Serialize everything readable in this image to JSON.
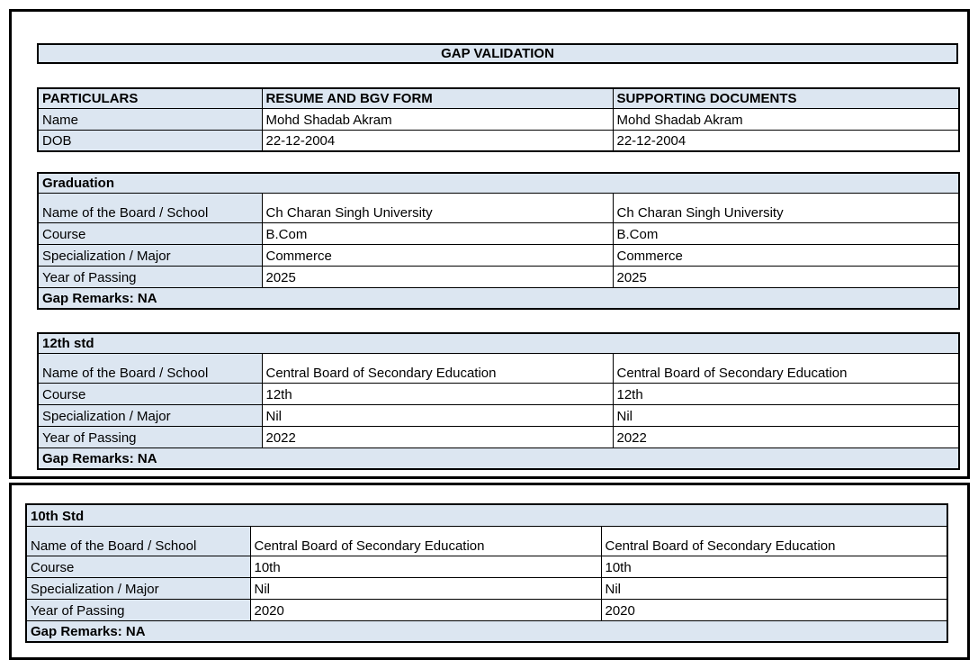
{
  "title": "GAP VALIDATION",
  "colors": {
    "header_fill": "#dce6f1",
    "border": "#000000",
    "text": "#000000",
    "background": "#ffffff"
  },
  "particulars_table": {
    "headers": [
      "PARTICULARS",
      "RESUME AND BGV FORM",
      "SUPPORTING DOCUMENTS"
    ],
    "rows": [
      {
        "label": "Name",
        "resume": "Mohd Shadab Akram",
        "supporting": "Mohd Shadab Akram"
      },
      {
        "label": "DOB",
        "resume": "22-12-2004",
        "supporting": "22-12-2004"
      }
    ]
  },
  "sections": [
    {
      "title": "Graduation",
      "rows": [
        {
          "label": "Name of the Board / School",
          "resume": "Ch Charan Singh University",
          "supporting": "Ch Charan Singh University"
        },
        {
          "label": "Course",
          "resume": "B.Com",
          "supporting": "B.Com"
        },
        {
          "label": "Specialization / Major",
          "resume": "Commerce",
          "supporting": "Commerce"
        },
        {
          "label": "Year of Passing",
          "resume": "2025",
          "supporting": "2025"
        }
      ],
      "gap_remarks": "Gap Remarks: NA"
    },
    {
      "title": "12th std",
      "rows": [
        {
          "label": "Name of the Board / School",
          "resume": "Central Board of Secondary Education",
          "supporting": "Central Board of Secondary Education"
        },
        {
          "label": "Course",
          "resume": "12th",
          "supporting": "12th"
        },
        {
          "label": "Specialization / Major",
          "resume": "Nil",
          "supporting": "Nil"
        },
        {
          "label": "Year of Passing",
          "resume": "2022",
          "supporting": "2022"
        }
      ],
      "gap_remarks": "Gap Remarks: NA"
    },
    {
      "title": "10th Std",
      "rows": [
        {
          "label": "Name of the Board / School",
          "resume": "Central Board of Secondary Education",
          "supporting": "Central Board of Secondary Education"
        },
        {
          "label": "Course",
          "resume": "10th",
          "supporting": "10th"
        },
        {
          "label": "Specialization / Major",
          "resume": "Nil",
          "supporting": "Nil"
        },
        {
          "label": "Year of Passing",
          "resume": "2020",
          "supporting": "2020"
        }
      ],
      "gap_remarks": "Gap Remarks: NA"
    }
  ]
}
